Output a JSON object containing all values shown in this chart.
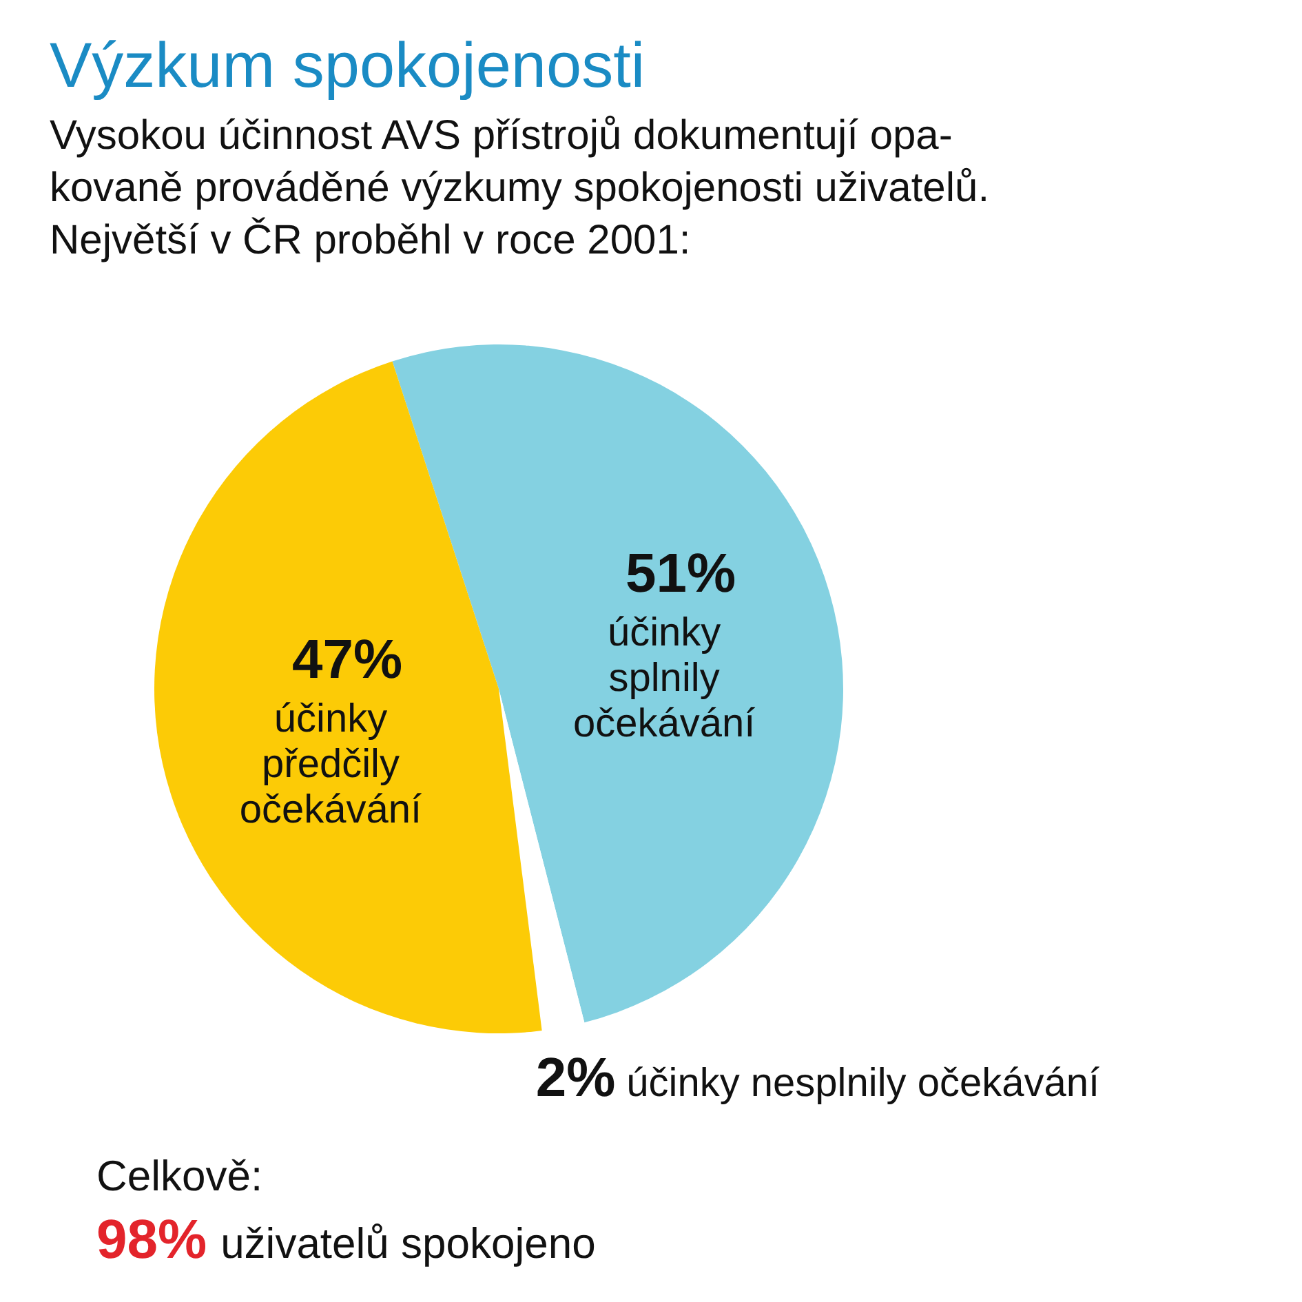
{
  "chart_data": {
    "type": "pie",
    "title": "Výzkum spokojenosti",
    "subtitle": "Vysokou účinnost AVS přístrojů dokumentují opa-\nkovaně prováděné výzkumy spokojenosti uživatelů.\nNejvětší v ČR proběhl v roce 2001:",
    "categories": [
      "účinky splnily očekávání",
      "účinky nesplnily očekávání",
      "účinky předčily očekávání"
    ],
    "values": [
      51,
      2,
      47
    ],
    "value_labels": [
      "51%",
      "2%",
      "47%"
    ],
    "colors": [
      "#84d1e1",
      "#ffffff",
      "#fccb06"
    ],
    "annotations": [
      "Celkově:",
      "98%",
      "uživatelů spokojeno"
    ],
    "legend": false
  }
}
